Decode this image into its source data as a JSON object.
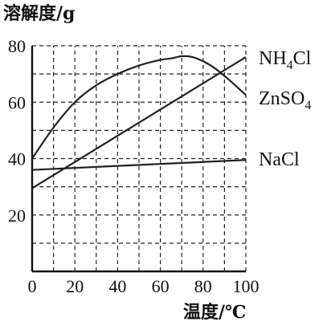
{
  "chart_data": {
    "type": "line",
    "ylabel": "溶解度/g",
    "xlabel": "温度/℃",
    "xlim": [
      0,
      100
    ],
    "ylim": [
      0,
      80
    ],
    "x_ticks": [
      "0",
      "20",
      "40",
      "60",
      "80",
      "100"
    ],
    "y_ticks": [
      "20",
      "40",
      "60",
      "80"
    ],
    "grid": true,
    "series": [
      {
        "name": "NH4Cl",
        "x": [
          0,
          100
        ],
        "values": [
          29.5,
          76
        ]
      },
      {
        "name": "ZnSO4",
        "x": [
          0,
          10,
          20,
          30,
          40,
          50,
          60,
          65,
          70,
          75,
          80,
          85,
          90,
          95,
          100
        ],
        "values": [
          40,
          51,
          60,
          66,
          70,
          73,
          75,
          75.5,
          76.3,
          76,
          74.5,
          72.3,
          69.3,
          66,
          62.5
        ]
      },
      {
        "name": "NaCl",
        "x": [
          0,
          100
        ],
        "values": [
          36,
          39.5
        ]
      }
    ]
  }
}
